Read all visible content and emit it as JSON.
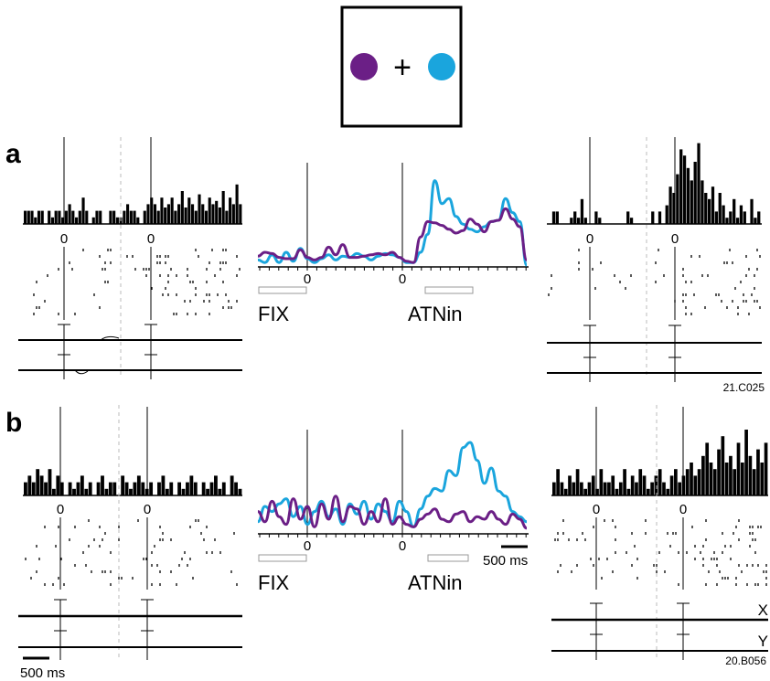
{
  "stimulus_box": {
    "plus": "+"
  },
  "colors": {
    "purple": "#6b1f86",
    "blue": "#1aa5dd",
    "black": "#000000",
    "grey": "#c8c8c8"
  },
  "panels": [
    {
      "letter": "a",
      "zero": "0",
      "fix_label": "FIX",
      "attn_label": "ATNin",
      "cell_id_label": "21.C025",
      "psth_left_a": [
        4,
        4,
        4,
        2,
        4,
        4,
        0,
        4,
        2,
        4,
        4,
        2,
        4,
        6,
        4,
        2,
        4,
        8,
        4,
        0,
        2,
        4,
        4,
        0,
        0,
        4,
        4,
        2,
        2,
        4,
        6,
        4,
        4,
        2,
        0,
        4,
        6,
        8,
        6,
        4,
        8,
        5,
        6,
        8,
        4,
        6,
        10,
        5,
        8,
        6,
        4,
        9,
        6,
        4,
        8,
        6,
        7,
        5,
        10,
        4,
        8,
        6,
        12,
        6
      ],
      "psth_right_a": [
        0,
        4,
        4,
        0,
        0,
        0,
        2,
        4,
        2,
        8,
        2,
        0,
        0,
        4,
        2,
        0,
        0,
        0,
        0,
        0,
        0,
        0,
        4,
        2,
        0,
        0,
        0,
        0,
        0,
        4,
        0,
        4,
        0,
        6,
        12,
        10,
        16,
        24,
        22,
        18,
        14,
        20,
        26,
        14,
        10,
        8,
        12,
        4,
        10,
        6,
        2,
        4,
        8,
        2,
        6,
        4,
        0,
        8,
        2,
        4
      ],
      "curve_purple": [
        0.7,
        1.0,
        0.9,
        0.6,
        0.5,
        0.5,
        1.2,
        0.6,
        0.4,
        0.6,
        1.4,
        0.8,
        1.6,
        0.6,
        0.6,
        0.7,
        0.8,
        0.9,
        0.8,
        1.0,
        0.6,
        0.3,
        0.2,
        2.2,
        3.4,
        3.3,
        3.1,
        2.8,
        2.5,
        2.7,
        3.6,
        3.2,
        2.6,
        3.4,
        3.5,
        4.4,
        3.6,
        3.0,
        0.4
      ],
      "curve_blue": [
        0.4,
        0.2,
        0.8,
        0.2,
        1.0,
        0.3,
        1.3,
        0.5,
        0.2,
        0.5,
        0.8,
        0.4,
        0.7,
        0.6,
        0.9,
        0.7,
        0.4,
        0.7,
        0.9,
        0.8,
        0.6,
        0.2,
        0.2,
        1.0,
        2.4,
        6.6,
        4.8,
        5.2,
        3.8,
        3.2,
        2.8,
        2.6,
        3.0,
        3.4,
        3.5,
        5.2,
        4.1,
        3.4,
        0.0
      ],
      "eye_labels": []
    },
    {
      "letter": "b",
      "zero": "0",
      "fix_label": "FIX",
      "attn_label": "ATNin",
      "cell_id_label": "20.B056",
      "scale_left_label": "500 ms",
      "scale_mid_label": "500 ms",
      "psth_left_b": [
        4,
        6,
        4,
        8,
        6,
        4,
        8,
        2,
        6,
        4,
        0,
        4,
        2,
        4,
        6,
        2,
        4,
        0,
        4,
        6,
        2,
        4,
        4,
        0,
        6,
        4,
        2,
        4,
        6,
        4,
        2,
        4,
        0,
        4,
        6,
        2,
        4,
        0,
        4,
        2,
        4,
        6,
        4,
        0,
        4,
        2,
        4,
        6,
        2,
        4,
        0,
        6,
        4,
        2
      ],
      "psth_right_b": [
        4,
        8,
        4,
        2,
        6,
        4,
        8,
        4,
        2,
        4,
        6,
        2,
        8,
        4,
        4,
        6,
        2,
        4,
        8,
        2,
        6,
        4,
        8,
        6,
        2,
        4,
        6,
        8,
        4,
        2,
        6,
        8,
        4,
        6,
        8,
        10,
        6,
        8,
        12,
        16,
        10,
        8,
        14,
        18,
        10,
        12,
        8,
        16,
        10,
        20,
        12,
        8,
        14,
        10,
        16
      ],
      "curve_purple": [
        1.6,
        0.8,
        2.4,
        1.2,
        0.6,
        2.6,
        1.0,
        2.0,
        0.4,
        2.2,
        1.0,
        2.8,
        0.8,
        2.0,
        1.8,
        0.6,
        1.6,
        0.8,
        2.6,
        0.6,
        1.2,
        0.6,
        0.4,
        1.0,
        1.4,
        1.8,
        1.0,
        0.8,
        1.4,
        1.6,
        0.8,
        1.2,
        1.0,
        1.6,
        1.0,
        0.6,
        1.4,
        1.0,
        0.3
      ],
      "curve_blue": [
        0.8,
        2.0,
        1.6,
        2.2,
        2.6,
        1.2,
        2.0,
        0.6,
        1.6,
        2.4,
        1.2,
        1.8,
        0.6,
        2.2,
        1.4,
        2.4,
        1.0,
        2.2,
        1.6,
        0.8,
        2.4,
        1.6,
        0.4,
        1.8,
        2.8,
        3.4,
        3.2,
        4.8,
        4.4,
        6.6,
        7.0,
        5.6,
        3.8,
        5.0,
        3.2,
        2.8,
        1.6,
        1.2,
        0.8
      ],
      "eye_labels": [
        "X",
        "Y"
      ]
    }
  ]
}
